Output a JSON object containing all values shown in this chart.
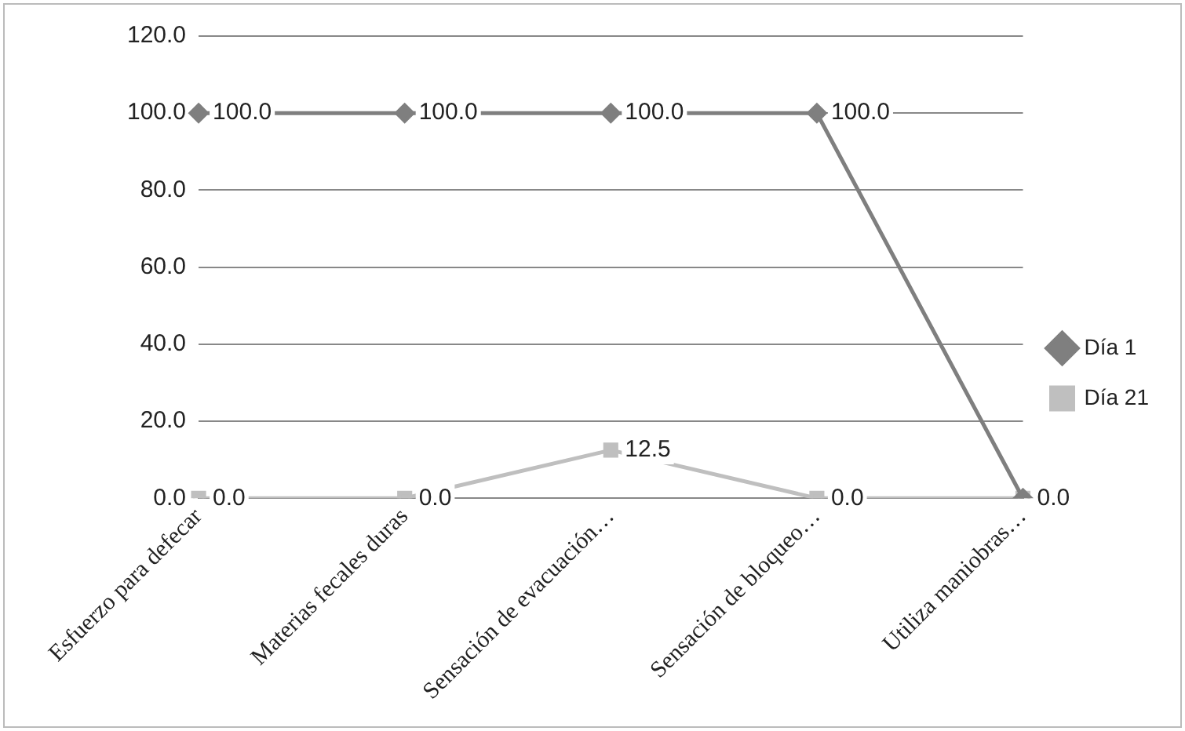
{
  "chart_data": {
    "type": "line",
    "categories": [
      "Esfuerzo para defecar",
      "Materias fecales duras",
      "Sensación de evacuación…",
      "Sensación de bloqueo…",
      "Utiliza maniobras…"
    ],
    "series": [
      {
        "name": "Día 1",
        "color": "#7f7f7f",
        "marker": "diamond",
        "values": [
          100,
          100,
          100,
          100,
          0
        ],
        "value_labels": [
          "100.0",
          "100.0",
          "100.0",
          "100.0",
          null
        ]
      },
      {
        "name": "Día 21",
        "color": "#bfbfbf",
        "marker": "square",
        "values": [
          0,
          0,
          12.5,
          0,
          0
        ],
        "value_labels": [
          "0.0",
          "0.0",
          "12.5",
          "0.0",
          "0.0"
        ]
      }
    ],
    "ylim": [
      0,
      120
    ],
    "yticks": [
      {
        "value": 0,
        "label": "0.0"
      },
      {
        "value": 20,
        "label": "20.0"
      },
      {
        "value": 40,
        "label": "40.0"
      },
      {
        "value": 60,
        "label": "60.0"
      },
      {
        "value": 80,
        "label": "80.0"
      },
      {
        "value": 100,
        "label": "100.0"
      },
      {
        "value": 120,
        "label": "120.0"
      }
    ],
    "grid": "y",
    "legend": "right"
  }
}
